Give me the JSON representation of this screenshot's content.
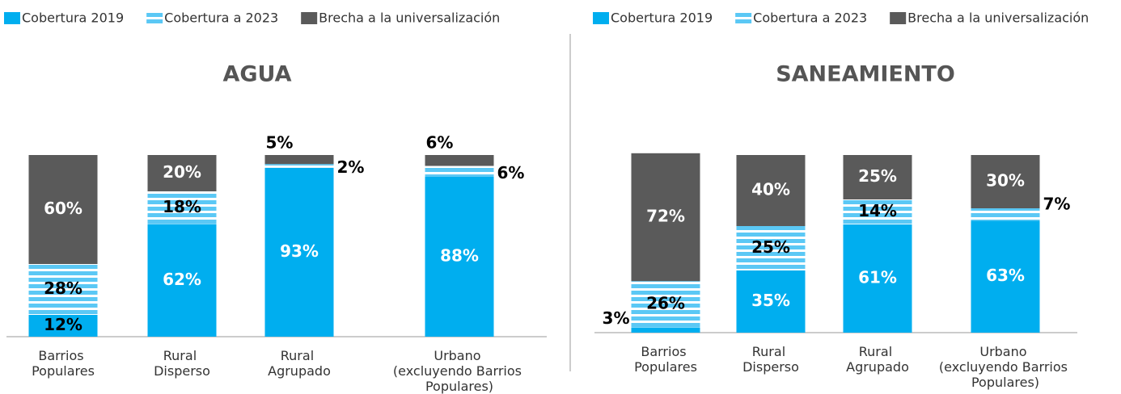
{
  "chart_data": [
    {
      "type": "stacked-bar",
      "title": "AGUA",
      "categories": [
        "Barrios Populares",
        "Rural Disperso",
        "Rural Agrupado",
        "Urbano (excluyendo Barrios Populares)"
      ],
      "series": [
        {
          "name": "Cobertura 2019",
          "color": "#00aeef",
          "values": [
            12,
            62,
            93,
            88
          ],
          "value_labels": [
            "12%",
            "62%",
            "93%",
            "88%"
          ]
        },
        {
          "name": "Cobertura a 2023",
          "color": "#5bc8f5",
          "values": [
            28,
            18,
            2,
            6
          ],
          "value_labels": [
            "28%",
            "18%",
            "2%",
            "6%"
          ]
        },
        {
          "name": "Brecha a la universalización",
          "color": "#5a5a5a",
          "values": [
            60,
            20,
            5,
            6
          ],
          "value_labels": [
            "60%",
            "20%",
            "5%",
            "6%"
          ]
        }
      ]
    },
    {
      "type": "stacked-bar",
      "title": "SANEAMIENTO",
      "categories": [
        "Barrios Populares",
        "Rural Disperso",
        "Rural Agrupado",
        "Urbano (excluyendo Barrios Populares)"
      ],
      "series": [
        {
          "name": "Cobertura 2019",
          "color": "#00aeef",
          "values": [
            3,
            35,
            61,
            63
          ],
          "value_labels": [
            "3%",
            "35%",
            "61%",
            "63%"
          ]
        },
        {
          "name": "Cobertura a 2023",
          "color": "#5bc8f5",
          "values": [
            26,
            25,
            14,
            7
          ],
          "value_labels": [
            "26%",
            "25%",
            "14%",
            "7%"
          ]
        },
        {
          "name": "Brecha a la universalización",
          "color": "#5a5a5a",
          "values": [
            72,
            40,
            25,
            30
          ],
          "value_labels": [
            "72%",
            "40%",
            "25%",
            "30%"
          ]
        }
      ]
    }
  ]
}
